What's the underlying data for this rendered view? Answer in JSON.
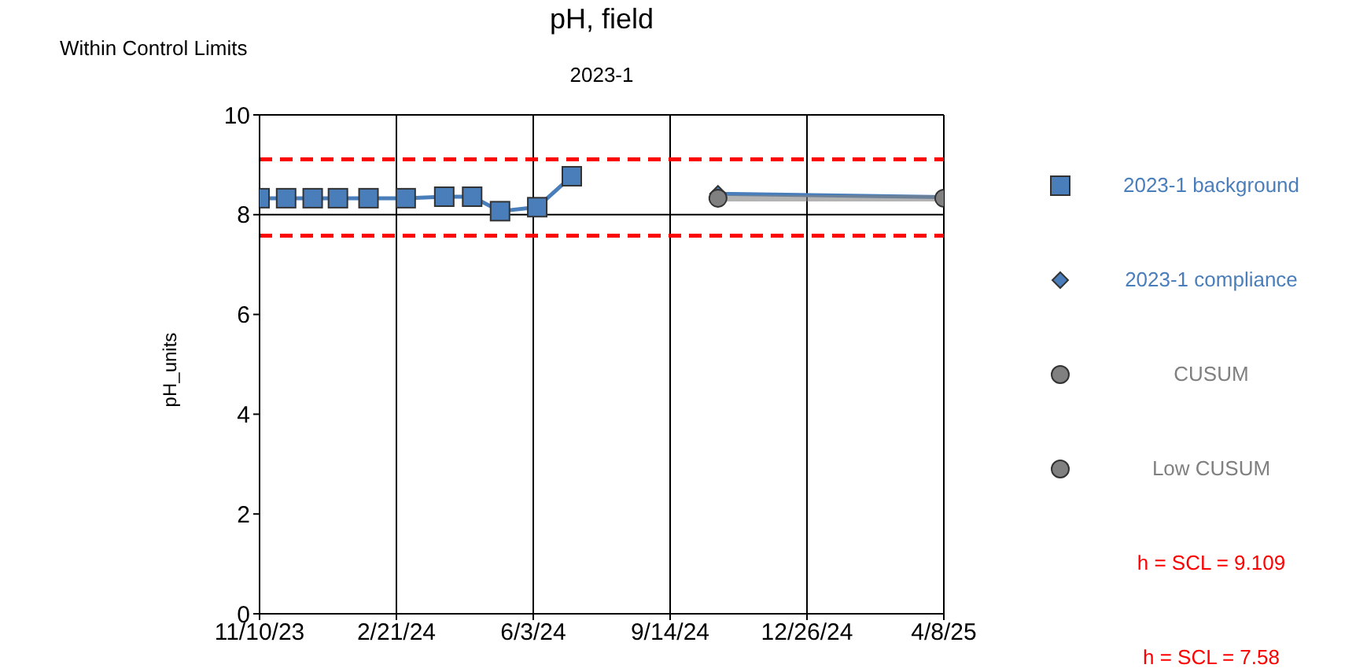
{
  "chart_data": {
    "type": "line",
    "title": "pH, field",
    "subtitle": "2023-1",
    "ylabel": "pH_units",
    "annotations": [
      "Within Control Limits"
    ],
    "xlim": [
      "2023-11-10",
      "2025-04-08"
    ],
    "xticks": [
      {
        "value": "2023-11-10",
        "label": "11/10/23"
      },
      {
        "value": "2024-02-21",
        "label": "2/21/24"
      },
      {
        "value": "2024-06-03",
        "label": "6/3/24"
      },
      {
        "value": "2024-09-14",
        "label": "9/14/24"
      },
      {
        "value": "2024-12-26",
        "label": "12/26/24"
      },
      {
        "value": "2025-04-08",
        "label": "4/8/25"
      }
    ],
    "ylim": [
      0,
      10
    ],
    "yticks": [
      0,
      2,
      4,
      6,
      8,
      10
    ],
    "grid": "x",
    "legend": "right",
    "series": [
      {
        "name": "2023-1 background",
        "color": "#4a7ebb",
        "marker": "square",
        "x": [
          "2023-11-10",
          "2023-11-30",
          "2023-12-20",
          "2024-01-08",
          "2024-01-31",
          "2024-02-28",
          "2024-03-28",
          "2024-04-18",
          "2024-05-09",
          "2024-06-06",
          "2024-07-02"
        ],
        "values": [
          8.33,
          8.33,
          8.33,
          8.33,
          8.33,
          8.33,
          8.36,
          8.36,
          8.07,
          8.15,
          8.77
        ]
      },
      {
        "name": "2023-1 compliance",
        "color": "#4a7ebb",
        "marker": "diamond",
        "x": [
          "2024-10-20",
          "2025-04-08"
        ],
        "values": [
          8.42,
          8.35
        ]
      },
      {
        "name": "CUSUM",
        "color": "#808080",
        "marker": "circle",
        "x": [
          "2024-10-20",
          "2025-04-08"
        ],
        "values": [
          8.33,
          8.33
        ]
      },
      {
        "name": "Low CUSUM",
        "color": "#808080",
        "marker": "circle"
      }
    ],
    "ref_lines": [
      {
        "axis": "y",
        "value": 9.109,
        "label": "h = SCL = 9.109",
        "color": "#ff0000",
        "line_style": "dashed"
      },
      {
        "axis": "y",
        "value": 7.58,
        "label": "h = SCL = 7.58",
        "color": "#ff0000",
        "line_style": "dashed"
      },
      {
        "axis": "y",
        "value": 8,
        "color": "#000000",
        "line_style": "solid"
      }
    ]
  }
}
